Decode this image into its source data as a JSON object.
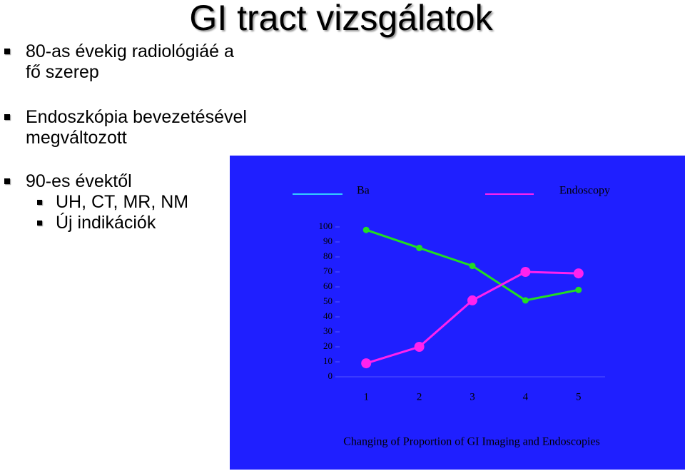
{
  "title": "GI tract vizsgálatok",
  "bullets": [
    {
      "lines": [
        "80-as évekig radiológiáé a",
        "fő szerep"
      ]
    },
    {
      "lines": [
        "Endoszkópia bevezetésével",
        "megváltozott"
      ]
    },
    {
      "lines": [
        "90-es évektől"
      ],
      "sub": [
        "UH, CT, MR, NM",
        "Új indikációk"
      ]
    }
  ],
  "chart_data": {
    "type": "line",
    "title": "Changing of Proportion of GI Imaging and Endoscopies",
    "categories": [
      "1",
      "2",
      "3",
      "4",
      "5"
    ],
    "series": [
      {
        "name": "Ba",
        "color": "#22dd22",
        "legend_color": "#33ccff",
        "values": [
          98,
          86,
          74,
          51,
          58
        ]
      },
      {
        "name": "Endoscopy",
        "color": "#ff22ee",
        "legend_color": "#ff22ee",
        "values": [
          9,
          20,
          51,
          70,
          69
        ]
      }
    ],
    "ylim": [
      0,
      100
    ],
    "yticks": [
      0,
      10,
      20,
      30,
      40,
      50,
      60,
      70,
      80,
      90,
      100
    ],
    "grid": false
  }
}
